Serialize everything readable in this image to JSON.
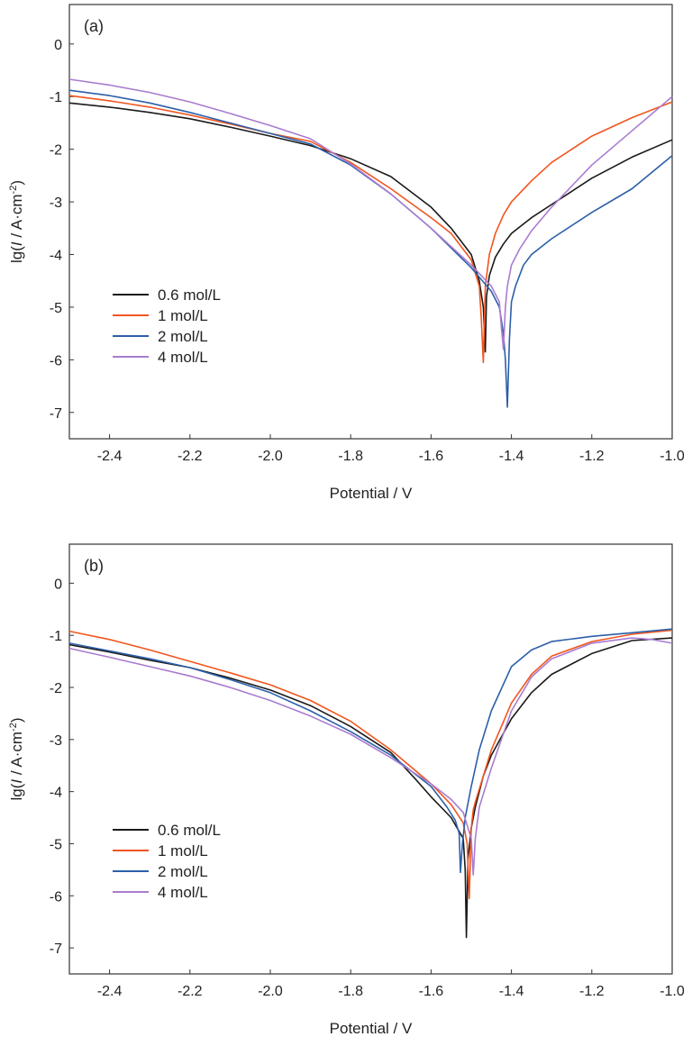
{
  "chart_data": [
    {
      "type": "line",
      "panel_label": "(a)",
      "xlabel": "Potential / V",
      "ylabel_prefix": "lg(",
      "ylabel_italic": "I",
      "ylabel_mid": " / A·cm",
      "ylabel_sup": "-2",
      "ylabel_suffix": ")",
      "xlim": [
        -2.5,
        -1.0
      ],
      "ylim": [
        -7.5,
        0.75
      ],
      "xticks": [
        -2.4,
        -2.2,
        -2.0,
        -1.8,
        -1.6,
        -1.4,
        -1.2,
        -1.0
      ],
      "xtick_labels": [
        "-2.4",
        "-2.2",
        "-2.0",
        "-1.8",
        "-1.6",
        "-1.4",
        "-1.2",
        "-1.0"
      ],
      "yticks": [
        0,
        -1,
        -2,
        -3,
        -4,
        -5,
        -6,
        -7
      ],
      "ytick_labels": [
        "0",
        "-1",
        "-2",
        "-3",
        "-4",
        "-5",
        "-6",
        "-7"
      ],
      "grid": false,
      "legend_position": "bottom-left",
      "series": [
        {
          "name": "0.6 mol/L",
          "color": "#1a1a1a",
          "x": [
            -2.5,
            -2.4,
            -2.3,
            -2.2,
            -2.1,
            -2.0,
            -1.9,
            -1.8,
            -1.7,
            -1.66,
            -1.6,
            -1.55,
            -1.5,
            -1.48,
            -1.47,
            -1.465,
            -1.462,
            -1.455,
            -1.44,
            -1.42,
            -1.4,
            -1.35,
            -1.3,
            -1.25,
            -1.2,
            -1.1,
            -1.0
          ],
          "y": [
            -1.12,
            -1.2,
            -1.3,
            -1.42,
            -1.58,
            -1.75,
            -1.93,
            -2.18,
            -2.52,
            -2.75,
            -3.1,
            -3.5,
            -4.0,
            -4.5,
            -5.0,
            -5.85,
            -4.8,
            -4.4,
            -4.05,
            -3.8,
            -3.6,
            -3.3,
            -3.05,
            -2.8,
            -2.55,
            -2.15,
            -1.82
          ]
        },
        {
          "name": "1 mol/L",
          "color": "#f2551e",
          "x": [
            -2.5,
            -2.4,
            -2.3,
            -2.2,
            -2.1,
            -2.0,
            -1.9,
            -1.8,
            -1.7,
            -1.6,
            -1.55,
            -1.5,
            -1.48,
            -1.475,
            -1.47,
            -1.465,
            -1.455,
            -1.44,
            -1.42,
            -1.4,
            -1.35,
            -1.3,
            -1.2,
            -1.1,
            -1.0
          ],
          "y": [
            -0.98,
            -1.08,
            -1.2,
            -1.35,
            -1.52,
            -1.7,
            -1.85,
            -2.25,
            -2.75,
            -3.3,
            -3.6,
            -4.1,
            -4.6,
            -5.2,
            -6.05,
            -4.6,
            -4.0,
            -3.6,
            -3.25,
            -3.0,
            -2.6,
            -2.25,
            -1.75,
            -1.4,
            -1.1
          ]
        },
        {
          "name": "2 mol/L",
          "color": "#2c5fa8",
          "x": [
            -2.5,
            -2.4,
            -2.3,
            -2.2,
            -2.1,
            -2.0,
            -1.9,
            -1.8,
            -1.7,
            -1.6,
            -1.5,
            -1.45,
            -1.43,
            -1.42,
            -1.415,
            -1.41,
            -1.405,
            -1.4,
            -1.39,
            -1.37,
            -1.35,
            -1.3,
            -1.2,
            -1.1,
            -1.0
          ],
          "y": [
            -0.88,
            -0.98,
            -1.12,
            -1.3,
            -1.5,
            -1.7,
            -1.9,
            -2.3,
            -2.85,
            -3.5,
            -4.25,
            -4.7,
            -5.0,
            -5.5,
            -6.0,
            -6.9,
            -5.6,
            -4.9,
            -4.6,
            -4.2,
            -4.0,
            -3.7,
            -3.2,
            -2.75,
            -2.12
          ]
        },
        {
          "name": "4 mol/L",
          "color": "#a97ccf",
          "x": [
            -2.5,
            -2.4,
            -2.3,
            -2.2,
            -2.1,
            -2.0,
            -1.9,
            -1.8,
            -1.7,
            -1.6,
            -1.5,
            -1.45,
            -1.43,
            -1.425,
            -1.42,
            -1.415,
            -1.41,
            -1.4,
            -1.38,
            -1.35,
            -1.3,
            -1.2,
            -1.1,
            -1.0
          ],
          "y": [
            -0.67,
            -0.78,
            -0.92,
            -1.1,
            -1.32,
            -1.55,
            -1.8,
            -2.28,
            -2.85,
            -3.5,
            -4.2,
            -4.6,
            -4.9,
            -5.4,
            -5.8,
            -5.0,
            -4.6,
            -4.2,
            -3.9,
            -3.55,
            -3.1,
            -2.3,
            -1.65,
            -1.0
          ]
        }
      ]
    },
    {
      "type": "line",
      "panel_label": "(b)",
      "xlabel": "Potential / V",
      "ylabel_prefix": "lg(",
      "ylabel_italic": "I",
      "ylabel_mid": " / A·cm",
      "ylabel_sup": "-2",
      "ylabel_suffix": ")",
      "xlim": [
        -2.5,
        -1.0
      ],
      "ylim": [
        -7.5,
        0.75
      ],
      "xticks": [
        -2.4,
        -2.2,
        -2.0,
        -1.8,
        -1.6,
        -1.4,
        -1.2,
        -1.0
      ],
      "xtick_labels": [
        "-2.4",
        "-2.2",
        "-2.0",
        "-1.8",
        "-1.6",
        "-1.4",
        "-1.2",
        "-1.0"
      ],
      "yticks": [
        0,
        -1,
        -2,
        -3,
        -4,
        -5,
        -6,
        -7
      ],
      "ytick_labels": [
        "0",
        "-1",
        "-2",
        "-3",
        "-4",
        "-5",
        "-6",
        "-7"
      ],
      "grid": false,
      "legend_position": "bottom-left",
      "series": [
        {
          "name": "0.6 mol/L",
          "color": "#1a1a1a",
          "x": [
            -2.5,
            -2.4,
            -2.3,
            -2.2,
            -2.1,
            -2.0,
            -1.9,
            -1.8,
            -1.7,
            -1.64,
            -1.6,
            -1.55,
            -1.52,
            -1.515,
            -1.512,
            -1.508,
            -1.5,
            -1.49,
            -1.47,
            -1.45,
            -1.4,
            -1.35,
            -1.3,
            -1.2,
            -1.1,
            -1.0
          ],
          "y": [
            -1.18,
            -1.32,
            -1.48,
            -1.62,
            -1.82,
            -2.05,
            -2.35,
            -2.75,
            -3.25,
            -3.75,
            -4.1,
            -4.5,
            -4.9,
            -5.5,
            -6.8,
            -5.3,
            -4.7,
            -4.3,
            -3.7,
            -3.3,
            -2.6,
            -2.1,
            -1.75,
            -1.35,
            -1.1,
            -1.05
          ]
        },
        {
          "name": "1 mol/L",
          "color": "#f2551e",
          "x": [
            -2.5,
            -2.4,
            -2.3,
            -2.2,
            -2.1,
            -2.0,
            -1.9,
            -1.8,
            -1.7,
            -1.6,
            -1.55,
            -1.52,
            -1.51,
            -1.505,
            -1.5,
            -1.495,
            -1.49,
            -1.47,
            -1.45,
            -1.4,
            -1.35,
            -1.3,
            -1.2,
            -1.1,
            -1.0
          ],
          "y": [
            -0.92,
            -1.08,
            -1.28,
            -1.5,
            -1.72,
            -1.95,
            -2.25,
            -2.65,
            -3.2,
            -3.85,
            -4.25,
            -4.6,
            -5.0,
            -6.05,
            -4.7,
            -4.35,
            -4.2,
            -3.7,
            -3.2,
            -2.3,
            -1.75,
            -1.4,
            -1.12,
            -0.98,
            -0.9
          ]
        },
        {
          "name": "2 mol/L",
          "color": "#2c5fa8",
          "x": [
            -2.5,
            -2.4,
            -2.3,
            -2.2,
            -2.1,
            -2.0,
            -1.9,
            -1.8,
            -1.7,
            -1.6,
            -1.56,
            -1.54,
            -1.53,
            -1.527,
            -1.522,
            -1.515,
            -1.5,
            -1.48,
            -1.45,
            -1.4,
            -1.35,
            -1.3,
            -1.2,
            -1.1,
            -1.0
          ],
          "y": [
            -1.15,
            -1.3,
            -1.45,
            -1.62,
            -1.85,
            -2.1,
            -2.45,
            -2.85,
            -3.3,
            -3.9,
            -4.3,
            -4.55,
            -4.8,
            -5.55,
            -5.0,
            -4.5,
            -3.9,
            -3.2,
            -2.45,
            -1.6,
            -1.28,
            -1.12,
            -1.02,
            -0.95,
            -0.88
          ]
        },
        {
          "name": "4 mol/L",
          "color": "#a97ccf",
          "x": [
            -2.5,
            -2.4,
            -2.3,
            -2.2,
            -2.1,
            -2.0,
            -1.9,
            -1.8,
            -1.7,
            -1.6,
            -1.55,
            -1.52,
            -1.5,
            -1.495,
            -1.49,
            -1.48,
            -1.45,
            -1.4,
            -1.35,
            -1.3,
            -1.2,
            -1.1,
            -1.05,
            -1.0
          ],
          "y": [
            -1.25,
            -1.42,
            -1.6,
            -1.78,
            -2.0,
            -2.25,
            -2.55,
            -2.9,
            -3.35,
            -3.85,
            -4.15,
            -4.4,
            -4.9,
            -5.6,
            -4.9,
            -4.3,
            -3.55,
            -2.45,
            -1.8,
            -1.45,
            -1.15,
            -1.05,
            -1.08,
            -1.15
          ]
        }
      ]
    }
  ]
}
